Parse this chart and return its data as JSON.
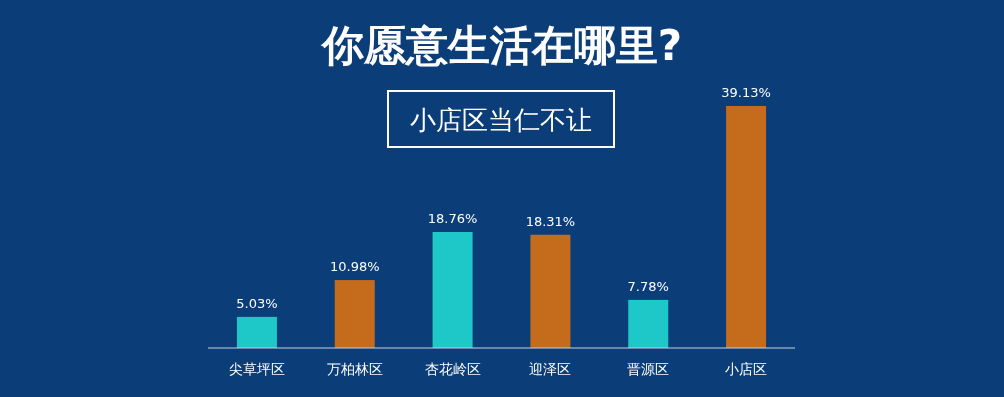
{
  "chart_data": {
    "type": "bar",
    "title": "你愿意生活在哪里?",
    "subtitle": "小店区当仁不让",
    "categories": [
      "尖草坪区",
      "万柏林区",
      "杏花岭区",
      "迎泽区",
      "晋源区",
      "小店区"
    ],
    "values": [
      5.03,
      10.98,
      18.76,
      18.31,
      7.78,
      39.13
    ],
    "value_labels": [
      "5.03%",
      "10.98%",
      "18.76%",
      "18.31%",
      "7.78%",
      "39.13%"
    ],
    "colors": [
      "#1ec8c8",
      "#c46c1c",
      "#1ec8c8",
      "#c46c1c",
      "#1ec8c8",
      "#c46c1c"
    ]
  }
}
